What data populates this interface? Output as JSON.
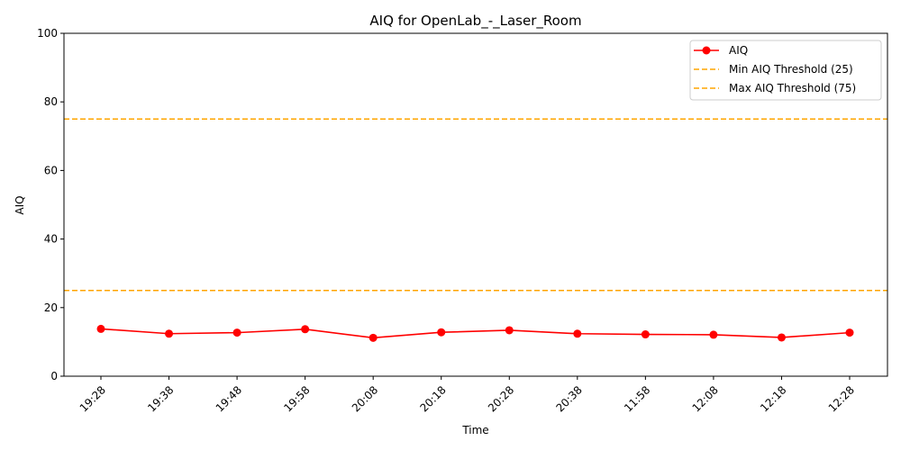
{
  "chart_data": {
    "type": "line",
    "title": "AIQ for OpenLab_-_Laser_Room",
    "xlabel": "Time",
    "ylabel": "AIQ",
    "ylim": [
      0,
      100
    ],
    "yticks": [
      0,
      20,
      40,
      60,
      80,
      100
    ],
    "categories": [
      "19:28",
      "19:38",
      "19:48",
      "19:58",
      "20:08",
      "20:18",
      "20:28",
      "20:38",
      "11:58",
      "12:08",
      "12:18",
      "12:28"
    ],
    "series": [
      {
        "name": "AIQ",
        "color": "#ff0000",
        "marker": "circle",
        "values": [
          13.8,
          12.4,
          12.7,
          13.7,
          11.2,
          12.8,
          13.4,
          12.4,
          12.2,
          12.1,
          11.3,
          12.7
        ]
      }
    ],
    "thresholds": [
      {
        "name": "Min AIQ Threshold (25)",
        "value": 25,
        "color": "#ffa500",
        "style": "dashed"
      },
      {
        "name": "Max AIQ Threshold (75)",
        "value": 75,
        "color": "#ffa500",
        "style": "dashed"
      }
    ],
    "legend_position": "top-right",
    "grid": false
  }
}
